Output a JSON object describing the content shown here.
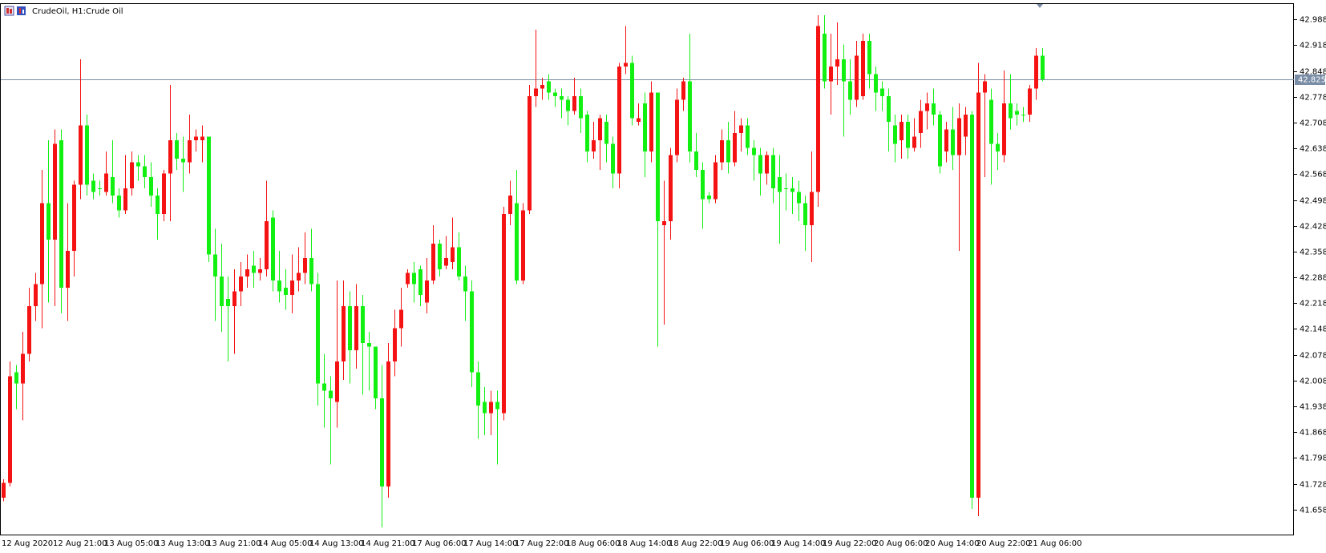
{
  "chart_data": {
    "type": "candlestick",
    "symbol": "CrudeOil, H1:",
    "title": "Crude Oil",
    "up_color": "#f51212",
    "down_color": "#12f012",
    "last_price": 42.825,
    "last_price_color": "#7a8da6",
    "grid": false,
    "ylim": [
      41.59,
      43.03
    ],
    "yticks": [
      41.658,
      41.728,
      41.798,
      41.868,
      41.938,
      42.008,
      42.078,
      42.148,
      42.218,
      42.288,
      42.358,
      42.428,
      42.498,
      42.568,
      42.638,
      42.708,
      42.778,
      42.848,
      42.918,
      42.988
    ],
    "categories": [
      "12 Aug 2020",
      null,
      null,
      null,
      null,
      null,
      null,
      null,
      "12 Aug 21:00",
      null,
      null,
      null,
      null,
      null,
      null,
      null,
      "13 Aug 05:00",
      null,
      null,
      null,
      null,
      null,
      null,
      null,
      "13 Aug 13:00",
      null,
      null,
      null,
      null,
      null,
      null,
      null,
      "13 Aug 21:00",
      null,
      null,
      null,
      null,
      null,
      null,
      null,
      "14 Aug 05:00",
      null,
      null,
      null,
      null,
      null,
      null,
      null,
      "14 Aug 13:00",
      null,
      null,
      null,
      null,
      null,
      null,
      null,
      "14 Aug 21:00",
      null,
      null,
      null,
      null,
      null,
      null,
      null,
      "17 Aug 06:00",
      null,
      null,
      null,
      null,
      null,
      null,
      null,
      "17 Aug 14:00",
      null,
      null,
      null,
      null,
      null,
      null,
      null,
      "17 Aug 22:00",
      null,
      null,
      null,
      null,
      null,
      null,
      null,
      "18 Aug 06:00",
      null,
      null,
      null,
      null,
      null,
      null,
      null,
      "18 Aug 14:00",
      null,
      null,
      null,
      null,
      null,
      null,
      null,
      "18 Aug 22:00",
      null,
      null,
      null,
      null,
      null,
      null,
      null,
      "19 Aug 06:00",
      null,
      null,
      null,
      null,
      null,
      null,
      null,
      "19 Aug 14:00",
      null,
      null,
      null,
      null,
      null,
      null,
      null,
      "19 Aug 22:00",
      null,
      null,
      null,
      null,
      null,
      null,
      null,
      "20 Aug 06:00",
      null,
      null,
      null,
      null,
      null,
      null,
      null,
      "20 Aug 14:00",
      null,
      null,
      null,
      null,
      null,
      null,
      null,
      "20 Aug 22:00",
      null,
      null,
      null,
      null,
      null,
      null,
      null,
      "21 Aug 06:00",
      null,
      null
    ],
    "open": [
      41.69,
      41.73,
      42.03,
      42.0,
      42.08,
      42.21,
      42.27,
      42.49,
      42.39,
      42.66,
      42.26,
      42.36,
      42.54,
      42.7,
      42.55,
      42.53,
      42.52,
      42.56,
      42.51,
      42.47,
      42.53,
      42.6,
      42.59,
      42.56,
      42.51,
      42.46,
      42.57,
      42.66,
      42.61,
      42.6,
      42.66,
      42.66,
      42.67,
      42.35,
      42.29,
      42.23,
      42.21,
      42.25,
      42.29,
      42.32,
      42.3,
      42.31,
      42.45,
      42.28,
      42.26,
      42.24,
      42.28,
      42.3,
      42.34,
      42.27,
      42.0,
      41.98,
      41.95,
      42.06,
      42.21,
      42.09,
      42.21,
      42.11,
      42.1,
      41.96,
      41.72,
      42.06,
      42.15,
      42.27,
      42.3,
      42.31,
      42.22,
      42.28,
      42.38,
      42.32,
      42.33,
      42.37,
      42.29,
      42.25,
      42.03,
      41.95,
      41.92,
      41.95,
      41.92,
      42.46,
      42.49,
      42.28,
      42.47,
      42.78,
      42.8,
      42.82,
      42.79,
      42.78,
      42.77,
      42.74,
      42.78,
      42.73,
      42.63,
      42.66,
      42.71,
      42.65,
      42.57,
      42.86,
      42.87,
      42.71,
      42.76,
      42.63,
      42.79,
      42.43,
      42.44,
      42.62,
      42.77,
      42.82,
      42.63,
      42.58,
      42.51,
      42.5,
      42.6,
      42.66,
      42.6,
      42.68,
      42.7,
      42.64,
      42.62,
      42.57,
      42.62,
      42.56,
      42.53,
      42.53,
      42.52,
      42.49,
      42.43,
      42.52,
      42.95,
      42.82,
      42.86,
      42.88,
      42.82,
      42.77,
      42.78,
      42.93,
      42.84,
      42.8,
      42.78,
      42.7,
      42.66,
      42.71,
      42.64,
      42.68,
      42.74,
      42.76,
      42.73,
      42.63,
      42.69,
      42.62,
      42.67,
      42.73,
      41.69,
      42.79,
      42.77,
      42.65,
      42.62,
      42.76,
      42.74,
      42.73,
      42.73,
      42.8,
      42.89
    ],
    "high": [
      41.74,
      42.06,
      42.05,
      42.14,
      42.26,
      42.3,
      42.58,
      42.66,
      42.69,
      42.69,
      42.49,
      42.55,
      42.88,
      42.73,
      42.57,
      42.55,
      42.63,
      42.66,
      42.53,
      42.62,
      42.63,
      42.62,
      42.62,
      42.6,
      42.53,
      42.58,
      42.81,
      42.68,
      42.67,
      42.73,
      42.69,
      42.7,
      42.67,
      42.42,
      42.38,
      42.29,
      42.31,
      42.33,
      42.35,
      42.36,
      42.34,
      42.55,
      42.47,
      42.36,
      42.31,
      42.35,
      42.37,
      42.41,
      42.42,
      42.3,
      42.08,
      42.02,
      42.28,
      42.28,
      42.25,
      42.27,
      42.24,
      42.14,
      42.1,
      42.05,
      42.11,
      42.2,
      42.26,
      42.31,
      42.33,
      42.32,
      42.34,
      42.43,
      42.39,
      42.4,
      42.45,
      42.41,
      42.32,
      42.28,
      42.06,
      41.99,
      41.98,
      41.98,
      42.48,
      42.55,
      42.58,
      42.49,
      42.81,
      42.96,
      42.83,
      42.84,
      42.8,
      42.8,
      42.78,
      42.83,
      42.8,
      42.74,
      42.71,
      42.73,
      42.73,
      42.67,
      42.87,
      42.97,
      42.89,
      42.76,
      42.79,
      42.82,
      42.79,
      42.55,
      42.64,
      42.8,
      42.83,
      42.95,
      42.68,
      42.6,
      42.52,
      42.62,
      42.69,
      42.71,
      42.74,
      42.72,
      42.72,
      42.66,
      42.64,
      42.63,
      42.64,
      42.62,
      42.57,
      42.56,
      42.55,
      42.51,
      42.63,
      43.0,
      43.0,
      42.95,
      42.98,
      42.92,
      42.88,
      42.93,
      42.95,
      42.95,
      42.86,
      42.82,
      42.8,
      42.73,
      42.73,
      42.73,
      42.72,
      42.77,
      42.79,
      42.8,
      42.74,
      42.71,
      42.75,
      42.76,
      42.75,
      42.74,
      42.87,
      42.84,
      42.8,
      42.68,
      42.85,
      42.84,
      42.76,
      42.75,
      42.81,
      42.91,
      42.91
    ],
    "low": [
      41.68,
      41.72,
      41.93,
      41.9,
      42.06,
      42.17,
      42.15,
      42.22,
      42.21,
      42.19,
      42.17,
      42.29,
      42.5,
      42.51,
      42.5,
      42.51,
      42.51,
      42.49,
      42.45,
      42.46,
      42.51,
      42.55,
      42.53,
      42.48,
      42.39,
      42.44,
      42.44,
      42.58,
      42.52,
      42.57,
      42.63,
      42.6,
      42.33,
      42.17,
      42.14,
      42.06,
      42.08,
      42.21,
      42.26,
      42.26,
      42.28,
      42.29,
      42.25,
      42.22,
      42.2,
      42.19,
      42.25,
      42.27,
      42.25,
      41.94,
      41.88,
      41.78,
      41.88,
      42.01,
      42.0,
      42.04,
      41.97,
      41.98,
      41.93,
      41.61,
      41.69,
      42.02,
      42.1,
      42.26,
      42.22,
      42.21,
      42.19,
      42.27,
      42.29,
      42.31,
      42.31,
      42.28,
      42.17,
      41.99,
      41.85,
      41.86,
      41.86,
      41.78,
      41.9,
      42.43,
      42.27,
      42.27,
      42.46,
      42.75,
      42.77,
      42.77,
      42.75,
      42.72,
      42.7,
      42.73,
      42.68,
      42.6,
      42.61,
      42.58,
      42.6,
      42.53,
      42.53,
      42.84,
      42.7,
      42.7,
      42.56,
      42.6,
      42.1,
      42.16,
      42.39,
      42.6,
      42.74,
      42.6,
      42.56,
      42.42,
      42.49,
      42.49,
      42.58,
      42.57,
      42.59,
      42.63,
      42.62,
      42.55,
      42.51,
      42.54,
      42.49,
      42.38,
      42.47,
      42.46,
      42.44,
      42.36,
      42.33,
      42.48,
      42.8,
      42.73,
      42.81,
      42.67,
      42.73,
      42.75,
      42.77,
      42.8,
      42.74,
      42.74,
      42.63,
      42.6,
      42.61,
      42.61,
      42.63,
      42.64,
      42.69,
      42.7,
      42.57,
      42.6,
      42.58,
      42.36,
      42.62,
      41.66,
      41.64,
      42.56,
      42.54,
      42.58,
      42.6,
      42.69,
      42.7,
      42.71,
      42.71,
      42.77,
      42.82
    ],
    "close": [
      41.73,
      42.02,
      42.0,
      42.08,
      42.21,
      42.27,
      42.49,
      42.39,
      42.65,
      42.26,
      42.36,
      42.54,
      42.7,
      42.54,
      42.52,
      42.53,
      42.57,
      42.51,
      42.47,
      42.53,
      42.6,
      42.59,
      42.56,
      42.51,
      42.46,
      42.57,
      42.66,
      42.61,
      42.6,
      42.66,
      42.67,
      42.67,
      42.35,
      42.29,
      42.21,
      42.21,
      42.25,
      42.29,
      42.31,
      42.3,
      42.31,
      42.44,
      42.28,
      42.25,
      42.24,
      42.28,
      42.3,
      42.34,
      42.27,
      42.0,
      41.98,
      41.96,
      42.06,
      42.21,
      42.09,
      42.21,
      42.11,
      42.1,
      41.96,
      41.72,
      42.06,
      42.15,
      42.2,
      42.3,
      42.27,
      42.24,
      42.28,
      42.38,
      42.31,
      42.34,
      42.37,
      42.29,
      42.25,
      42.03,
      41.94,
      41.92,
      41.95,
      41.93,
      42.46,
      42.51,
      42.28,
      42.47,
      42.78,
      42.8,
      42.81,
      42.79,
      42.78,
      42.77,
      42.74,
      42.78,
      42.72,
      42.63,
      42.66,
      42.72,
      42.65,
      42.57,
      42.86,
      42.87,
      42.72,
      42.72,
      42.63,
      42.79,
      42.44,
      42.44,
      42.62,
      42.77,
      42.82,
      42.63,
      42.58,
      42.5,
      42.5,
      42.6,
      42.66,
      42.6,
      42.68,
      42.7,
      42.64,
      42.62,
      42.57,
      42.62,
      42.53,
      42.52,
      42.53,
      42.52,
      42.49,
      42.43,
      42.52,
      42.97,
      42.82,
      42.86,
      42.88,
      42.82,
      42.77,
      42.89,
      42.93,
      42.84,
      42.79,
      42.78,
      42.71,
      42.65,
      42.71,
      42.64,
      42.67,
      42.74,
      42.76,
      42.73,
      42.59,
      42.69,
      42.62,
      42.72,
      42.73,
      41.69,
      42.79,
      42.82,
      42.65,
      42.63,
      42.76,
      42.72,
      42.73,
      42.73,
      42.8,
      42.89,
      42.825
    ]
  }
}
